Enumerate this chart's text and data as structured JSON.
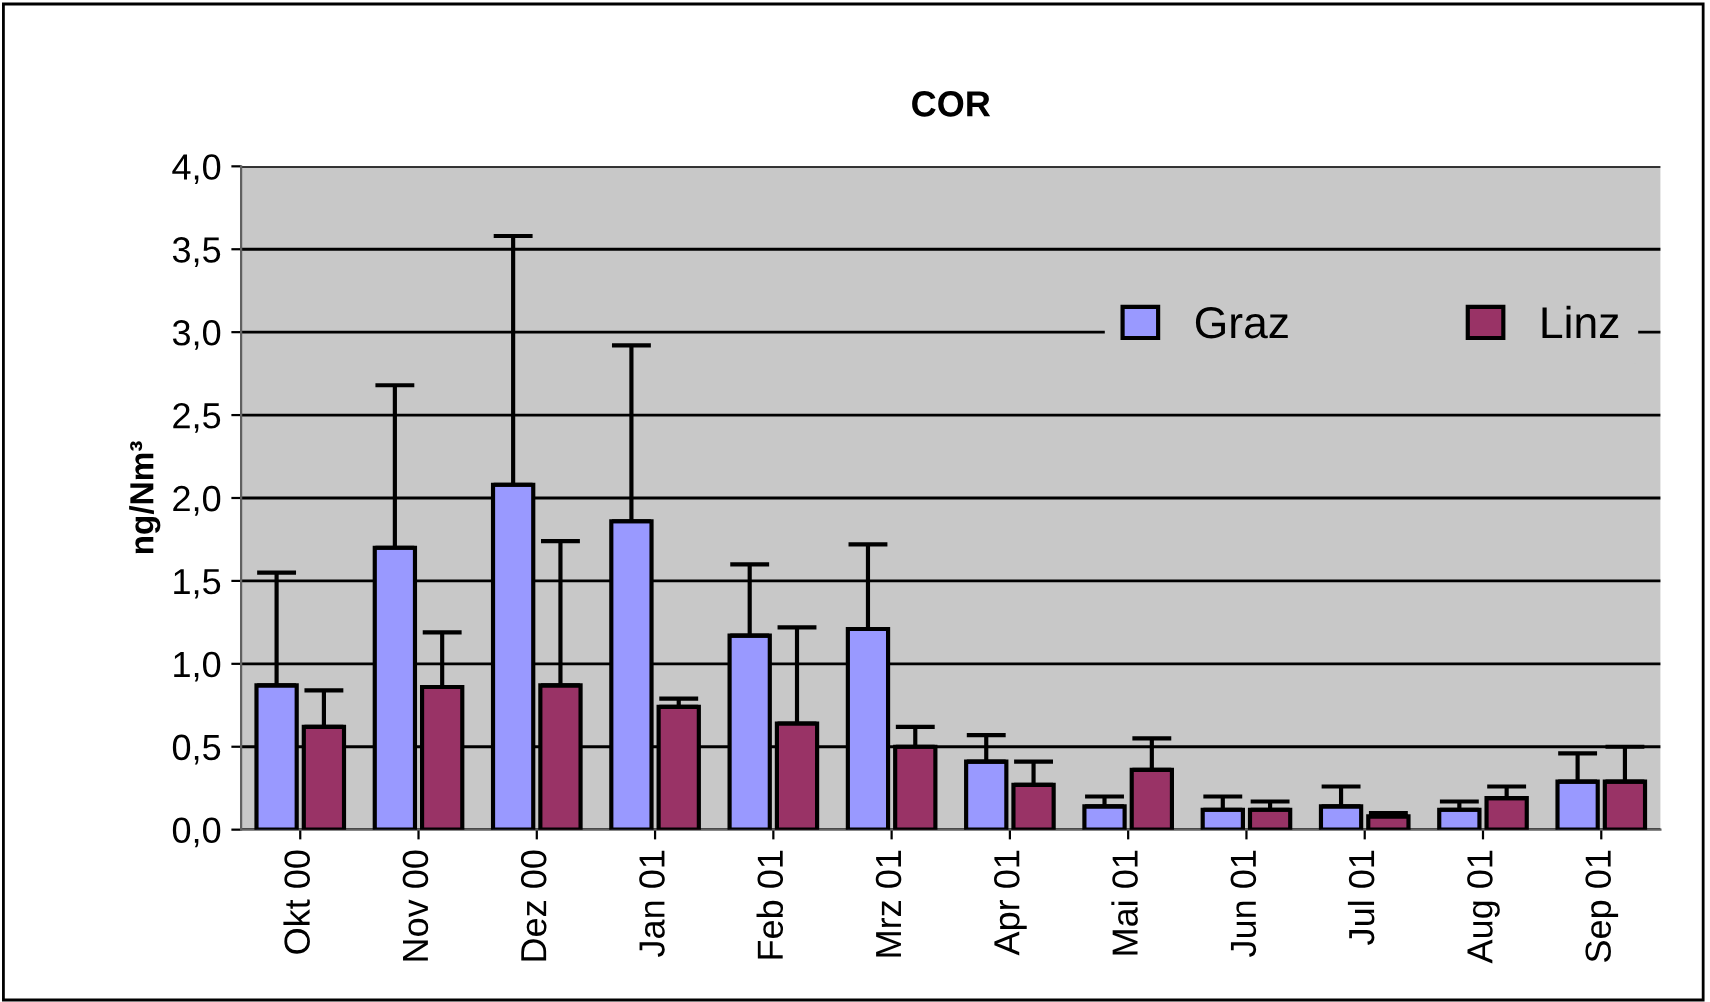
{
  "chart_data": {
    "type": "bar",
    "title": "COR",
    "ylabel": "ng/Nm³",
    "categories": [
      "Okt 00",
      "Nov 00",
      "Dez 00",
      "Jan 01",
      "Feb 01",
      "Mrz 01",
      "Apr 01",
      "Mai 01",
      "Jun 01",
      "Jul 01",
      "Aug 01",
      "Sep 01"
    ],
    "series": [
      {
        "name": "Graz",
        "color": "#9999ff",
        "values": [
          0.87,
          1.7,
          2.08,
          1.86,
          1.17,
          1.21,
          0.41,
          0.14,
          0.12,
          0.14,
          0.12,
          0.29
        ],
        "errors": [
          [
            0.87,
            1.55
          ],
          [
            1.7,
            2.68
          ],
          [
            2.08,
            3.58
          ],
          [
            1.86,
            2.92
          ],
          [
            1.17,
            1.6
          ],
          [
            1.21,
            1.72
          ],
          [
            0.41,
            0.57
          ],
          [
            0.14,
            0.2
          ],
          [
            0.12,
            0.2
          ],
          [
            0.14,
            0.26
          ],
          [
            0.12,
            0.17
          ],
          [
            0.29,
            0.46
          ]
        ]
      },
      {
        "name": "Linz",
        "color": "#993366",
        "values": [
          0.62,
          0.86,
          0.87,
          0.74,
          0.64,
          0.5,
          0.27,
          0.36,
          0.12,
          0.08,
          0.19,
          0.29
        ],
        "errors": [
          [
            0.62,
            0.84
          ],
          [
            0.86,
            1.19
          ],
          [
            0.87,
            1.74
          ],
          [
            0.74,
            0.79
          ],
          [
            0.64,
            1.22
          ],
          [
            0.5,
            0.62
          ],
          [
            0.27,
            0.41
          ],
          [
            0.36,
            0.55
          ],
          [
            0.12,
            0.17
          ],
          [
            0.08,
            0.1
          ],
          [
            0.19,
            0.26
          ],
          [
            0.29,
            0.5
          ]
        ]
      }
    ],
    "ylim": [
      0,
      4
    ],
    "yticks": [
      {
        "value": 0,
        "label": "0,0"
      },
      {
        "value": 0.5,
        "label": "0,5"
      },
      {
        "value": 1,
        "label": "1,0"
      },
      {
        "value": 1.5,
        "label": "1,5"
      },
      {
        "value": 2,
        "label": "2,0"
      },
      {
        "value": 2.5,
        "label": "2,5"
      },
      {
        "value": 3,
        "label": "3,0"
      },
      {
        "value": 3.5,
        "label": "3,5"
      },
      {
        "value": 4,
        "label": "4,0"
      }
    ],
    "grid": "y",
    "legend": "top right"
  }
}
